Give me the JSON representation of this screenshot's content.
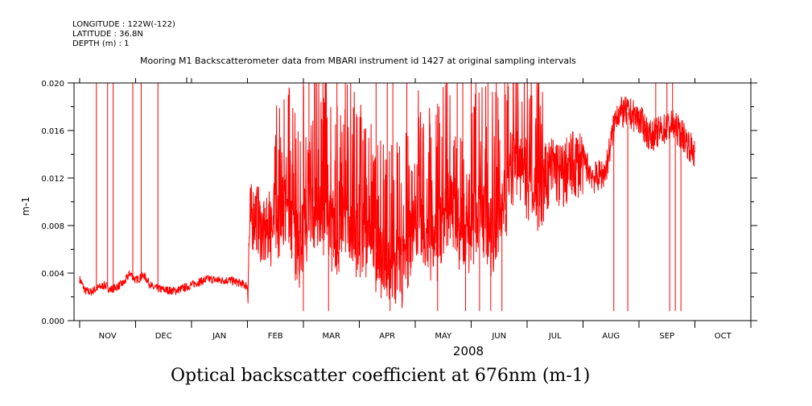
{
  "header": {
    "longitude": "LONGITUDE : 122W(-122)",
    "latitude": "LATITUDE : 36.8N",
    "depth": "DEPTH (m) : 1"
  },
  "plot_title": "Mooring M1 Backscatterometer data from MBARI instrument id 1427 at original sampling intervals",
  "bottom_title": "Optical backscatter coefficient at 676nm (m-1)",
  "chart_data": {
    "type": "line",
    "xlabel": "2008",
    "ylabel": "m-1",
    "ylim": [
      0.0,
      0.02
    ],
    "y_ticks": [
      "0.000",
      "0.004",
      "0.008",
      "0.012",
      "0.016",
      "0.020"
    ],
    "x_ticks": [
      "NOV",
      "DEC",
      "JAN",
      "FEB",
      "MAR",
      "APR",
      "MAY",
      "JUN",
      "JUL",
      "AUG",
      "SEP",
      "OCT"
    ],
    "x_range_months": [
      -0.1,
      12.0
    ],
    "grid": false,
    "series": [
      {
        "color": "#ff0000",
        "x": [
          0.0,
          0.1,
          0.2,
          0.3,
          0.45,
          0.55,
          0.65,
          0.8,
          0.9,
          1.0,
          1.15,
          1.3,
          1.5,
          1.7,
          1.9,
          2.1,
          2.3,
          2.5,
          2.7,
          2.9,
          3.0,
          3.05,
          3.15,
          3.3,
          3.5,
          3.7,
          3.9,
          4.0,
          4.2,
          4.4,
          4.6,
          4.8,
          5.0,
          5.2,
          5.4,
          5.6,
          5.8,
          5.9,
          6.0,
          6.2,
          6.4,
          6.6,
          6.8,
          7.0,
          7.2,
          7.4,
          7.6,
          7.8,
          8.0,
          8.2,
          8.4,
          8.5,
          8.6,
          8.8,
          9.0,
          9.2,
          9.4,
          9.6,
          9.8,
          10.0,
          10.2,
          10.4,
          10.6,
          10.8,
          11.0
        ],
        "y": [
          0.0035,
          0.0025,
          0.0024,
          0.0027,
          0.003,
          0.0026,
          0.0028,
          0.0032,
          0.004,
          0.0034,
          0.0038,
          0.0028,
          0.0026,
          0.0025,
          0.0028,
          0.0032,
          0.0035,
          0.0034,
          0.0034,
          0.0031,
          0.0029,
          0.0085,
          0.009,
          0.007,
          0.009,
          0.0095,
          0.006,
          0.008,
          0.01,
          0.009,
          0.0065,
          0.0085,
          0.007,
          0.007,
          0.005,
          0.0045,
          0.0045,
          0.0055,
          0.0085,
          0.0075,
          0.0065,
          0.01,
          0.0075,
          0.008,
          0.0095,
          0.0072,
          0.01,
          0.0145,
          0.0125,
          0.0115,
          0.0125,
          0.013,
          0.012,
          0.013,
          0.0135,
          0.012,
          0.0125,
          0.0175,
          0.0175,
          0.017,
          0.0155,
          0.016,
          0.0165,
          0.0155,
          0.014
        ]
      }
    ],
    "spikes_high": [
      0.3,
      0.5,
      0.6,
      0.95,
      1.1,
      1.4,
      4.0,
      4.1,
      4.2,
      4.35,
      4.6,
      4.75,
      5.3,
      5.5,
      5.6,
      5.85,
      6.55,
      6.75,
      6.85,
      7.0,
      7.3,
      7.45,
      7.6,
      7.75,
      7.95,
      10.3,
      10.5,
      10.6
    ],
    "spikes_low": [
      4.0,
      4.45,
      5.55,
      6.4,
      6.9,
      7.15,
      7.35,
      7.55,
      9.55,
      9.8,
      10.55,
      10.65,
      10.75
    ]
  }
}
